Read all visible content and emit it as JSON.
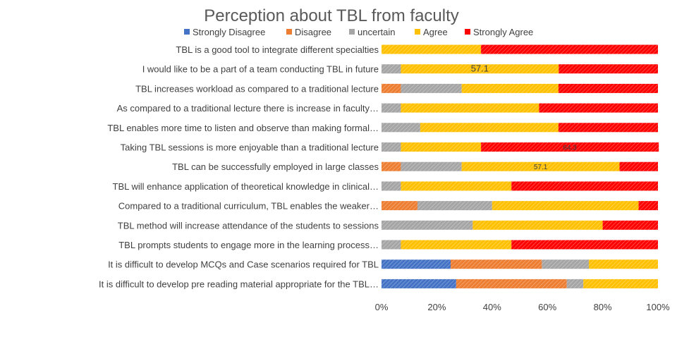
{
  "chart_data": {
    "type": "bar",
    "orientation": "horizontal",
    "stacked": "percent",
    "title": "Perception about TBL from faculty",
    "categories": [
      "TBL is a good tool to integrate different specialties",
      "I would like to be a part of a team conducting TBL in future",
      "TBL increases workload as compared to a traditional lecture",
      "As compared to a traditional lecture there is increase in faculty…",
      "TBL enables more time to listen and observe than making formal…",
      "Taking TBL sessions is more enjoyable than a traditional lecture",
      "TBL can be successfully employed in large classes",
      "TBL will enhance application of theoretical knowledge in clinical…",
      "Compared to a traditional curriculum, TBL enables the weaker…",
      "TBL method will increase attendance of the students to sessions",
      "TBL prompts students to engage more in the learning process…",
      "It is difficult to develop MCQs and Case scenarios required for TBL",
      "It is difficult to develop pre reading material appropriate for the TBL…"
    ],
    "series": [
      {
        "name": "Strongly Disagree",
        "color": "#4472C4",
        "values": [
          0,
          0,
          0,
          0,
          0,
          0,
          0,
          0,
          0,
          0,
          0,
          25,
          27
        ]
      },
      {
        "name": "Disagree",
        "color": "#ED7D31",
        "values": [
          0,
          0,
          7,
          0,
          0,
          0,
          7,
          0,
          13,
          0,
          0,
          33,
          40
        ]
      },
      {
        "name": "uncertain",
        "color": "#A5A5A5",
        "values": [
          0,
          7,
          22,
          7,
          14,
          7,
          22,
          7,
          27,
          33,
          7,
          17,
          6
        ]
      },
      {
        "name": "Agree",
        "color": "#FFC000",
        "values": [
          36,
          57.1,
          35,
          50,
          50,
          29,
          57.1,
          40,
          53,
          47,
          40,
          25,
          27
        ]
      },
      {
        "name": "Strongly Agree",
        "color": "#FF0000",
        "values": [
          64,
          35.9,
          36,
          43,
          36,
          64.3,
          13.9,
          53,
          7,
          20,
          53,
          0,
          0
        ]
      }
    ],
    "data_labels": [
      {
        "category_index": 1,
        "series": "Agree",
        "text": "57.1"
      },
      {
        "category_index": 5,
        "series": "Strongly Agree",
        "text": "64.3"
      },
      {
        "category_index": 6,
        "series": "Agree",
        "text": "57.1"
      }
    ],
    "x_ticks": [
      "0%",
      "20%",
      "40%",
      "60%",
      "80%",
      "100%"
    ],
    "xlim": [
      0,
      100
    ],
    "legend_position": "top",
    "grid": false,
    "xlabel": "",
    "ylabel": ""
  }
}
